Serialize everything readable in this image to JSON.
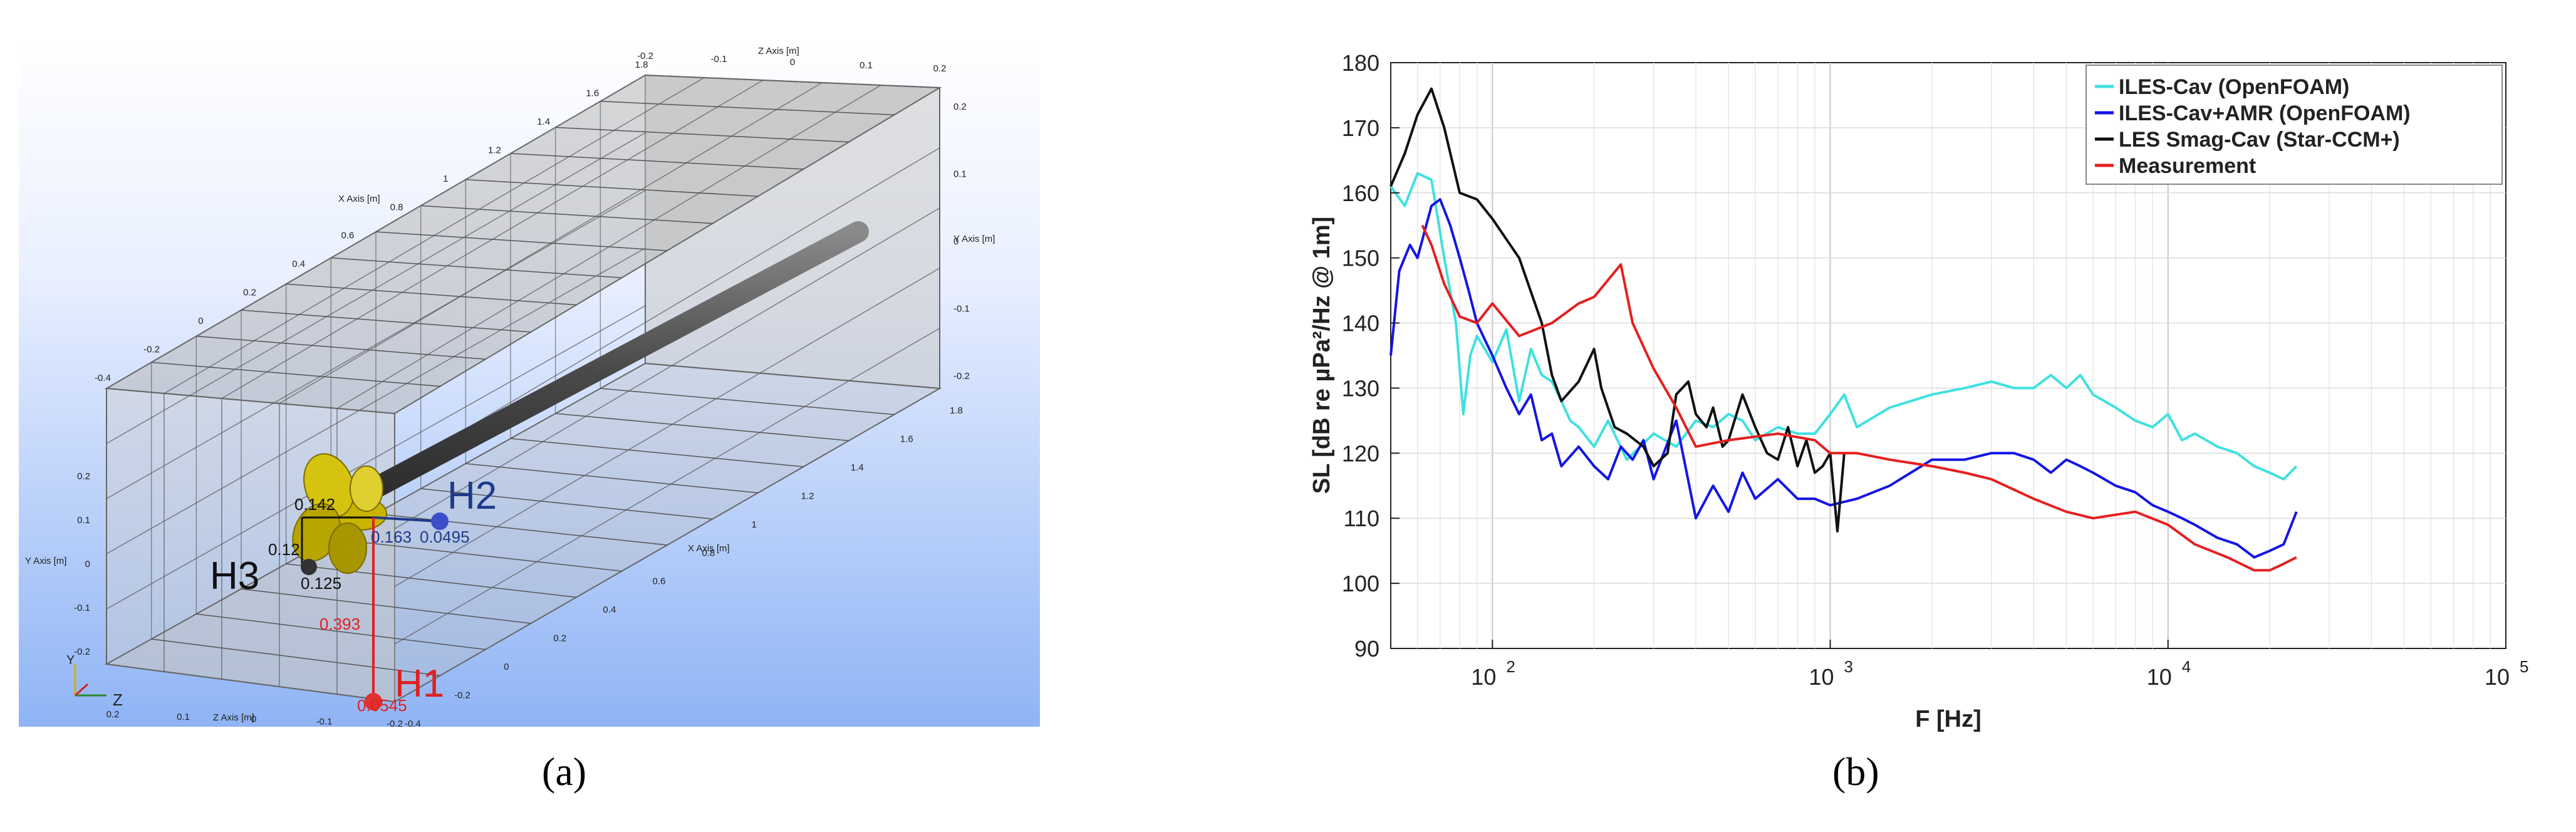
{
  "captions": {
    "a": "(a)",
    "b": "(b)"
  },
  "panel_a": {
    "axis_titles": {
      "x_upper": "X Axis [m]",
      "x_lower": "X Axis [m]",
      "y_right": "Y Axis [m]",
      "y_left": "Y Axis [m]",
      "z_top": "Z Axis [m]",
      "z_bottom": "Z Axis [m]"
    },
    "x_upper_ticks": [
      "1.8",
      "1.6",
      "1.4",
      "1.2",
      "1",
      "0.8",
      "0.6",
      "0.4",
      "0.2",
      "0",
      "-0.2",
      "-0.4"
    ],
    "x_lower_ticks": [
      "1.8",
      "1.6",
      "1.4",
      "1.2",
      "1",
      "0.8",
      "0.6",
      "0.4",
      "0.2",
      "0",
      "-0.2",
      "-0.4"
    ],
    "z_top_ticks": [
      "-0.2",
      "-0.1",
      "0",
      "0.1",
      "0.2"
    ],
    "z_bottom_ticks": [
      "0.2",
      "0.1",
      "0",
      "-0.1",
      "-0.2"
    ],
    "y_right_ticks": [
      "0.2",
      "0.1",
      "0",
      "-0.1",
      "-0.2"
    ],
    "y_left_ticks": [
      "0.2",
      "0.1",
      "0",
      "-0.1",
      "-0.2"
    ],
    "hydrophones": {
      "H1": {
        "label": "H1",
        "color": "#e02020",
        "offset": "0.0545",
        "distance": "0.393"
      },
      "H2": {
        "label": "H2",
        "color": "#1e3a8a",
        "offset": "0.0495",
        "distance": "0.163"
      },
      "H3": {
        "label": "H3",
        "color": "#111111",
        "offset": "0.12",
        "distance": "0.125"
      }
    },
    "dimension_142": "0.142",
    "colors": {
      "background_top": "#ffffff",
      "background_bottom": "#8fb4f5",
      "propeller": "#c8b400",
      "shaft": "#5a5a5a"
    },
    "axes_triad": {
      "y": "Y",
      "z": "Z"
    }
  },
  "chart_data": {
    "type": "line",
    "xlabel": "F [Hz]",
    "ylabel": "SL [dB re µPa²/Hz @ 1m]",
    "xscale": "log",
    "xlim": [
      50,
      100000
    ],
    "ylim": [
      90,
      180
    ],
    "xticks": [
      {
        "base": "10",
        "exp": "2",
        "value": 100
      },
      {
        "base": "10",
        "exp": "3",
        "value": 1000
      },
      {
        "base": "10",
        "exp": "4",
        "value": 10000
      },
      {
        "base": "10",
        "exp": "5",
        "value": 100000
      }
    ],
    "yticks": [
      "90",
      "100",
      "110",
      "120",
      "130",
      "140",
      "150",
      "160",
      "170",
      "180"
    ],
    "grid": true,
    "legend_position": "top-right",
    "series": [
      {
        "name": "ILES-Cav (OpenFOAM)",
        "color": "#3fe0e0",
        "x": [
          50,
          55,
          60,
          66,
          72,
          78,
          82,
          86,
          90,
          95,
          100,
          110,
          120,
          130,
          140,
          150,
          160,
          170,
          180,
          200,
          220,
          250,
          300,
          350,
          400,
          450,
          500,
          550,
          600,
          700,
          800,
          900,
          1000,
          1100,
          1200,
          1500,
          2000,
          2500,
          3000,
          3500,
          4000,
          4500,
          5000,
          5500,
          6000,
          7000,
          8000,
          9000,
          10000,
          11000,
          12000,
          14000,
          16000,
          18000,
          20000,
          22000,
          24000
        ],
        "y": [
          161,
          158,
          163,
          162,
          150,
          140,
          126,
          135,
          138,
          136,
          134,
          139,
          128,
          136,
          132,
          131,
          128,
          125,
          124,
          121,
          125,
          119,
          123,
          121,
          125,
          124,
          126,
          125,
          122,
          124,
          123,
          123,
          126,
          129,
          124,
          127,
          129,
          130,
          131,
          130,
          130,
          132,
          130,
          132,
          129,
          127,
          125,
          124,
          126,
          122,
          123,
          121,
          120,
          118,
          117,
          116,
          118
        ]
      },
      {
        "name": "ILES-Cav+AMR (OpenFOAM)",
        "color": "#1414e6",
        "x": [
          50,
          53,
          57,
          60,
          66,
          70,
          75,
          80,
          85,
          90,
          100,
          110,
          120,
          130,
          140,
          150,
          160,
          180,
          200,
          220,
          240,
          260,
          280,
          300,
          350,
          400,
          450,
          500,
          550,
          600,
          700,
          800,
          900,
          1000,
          1200,
          1500,
          2000,
          2500,
          3000,
          3500,
          4000,
          4500,
          5000,
          5500,
          6000,
          7000,
          8000,
          9000,
          10000,
          11000,
          12000,
          14000,
          16000,
          18000,
          20000,
          22000,
          24000
        ],
        "y": [
          135,
          148,
          152,
          150,
          158,
          159,
          155,
          150,
          145,
          140,
          135,
          130,
          126,
          129,
          122,
          123,
          118,
          121,
          118,
          116,
          121,
          119,
          122,
          116,
          125,
          110,
          115,
          111,
          117,
          113,
          116,
          113,
          113,
          112,
          113,
          115,
          119,
          119,
          120,
          120,
          119,
          117,
          119,
          118,
          117,
          115,
          114,
          112,
          111,
          110,
          109,
          107,
          106,
          104,
          105,
          106,
          111
        ]
      },
      {
        "name": "LES Smag-Cav (Star-CCM+)",
        "color": "#111111",
        "x": [
          50,
          55,
          60,
          66,
          72,
          80,
          90,
          100,
          120,
          140,
          150,
          160,
          180,
          200,
          210,
          230,
          250,
          280,
          300,
          330,
          350,
          380,
          400,
          430,
          450,
          480,
          500,
          550,
          600,
          650,
          700,
          750,
          800,
          850,
          900,
          950,
          1000,
          1050,
          1100
        ],
        "y": [
          161,
          166,
          172,
          176,
          170,
          160,
          159,
          156,
          150,
          140,
          132,
          128,
          131,
          136,
          130,
          124,
          123,
          121,
          118,
          120,
          129,
          131,
          126,
          124,
          127,
          121,
          122,
          129,
          124,
          120,
          119,
          124,
          118,
          122,
          117,
          118,
          120,
          108,
          120
        ]
      },
      {
        "name": "Measurement",
        "color": "#e61e1e",
        "x": [
          62,
          66,
          72,
          80,
          90,
          100,
          120,
          150,
          180,
          200,
          240,
          260,
          300,
          350,
          400,
          500,
          700,
          900,
          1000,
          1200,
          1500,
          2000,
          2500,
          3000,
          4000,
          5000,
          6000,
          8000,
          10000,
          12000,
          15000,
          18000,
          20000,
          22000,
          24000
        ],
        "y": [
          155,
          152,
          146,
          141,
          140,
          143,
          138,
          140,
          143,
          144,
          149,
          140,
          133,
          127,
          121,
          122,
          123,
          122,
          120,
          120,
          119,
          118,
          117,
          116,
          113,
          111,
          110,
          111,
          109,
          106,
          104,
          102,
          102,
          103,
          104
        ]
      }
    ]
  }
}
